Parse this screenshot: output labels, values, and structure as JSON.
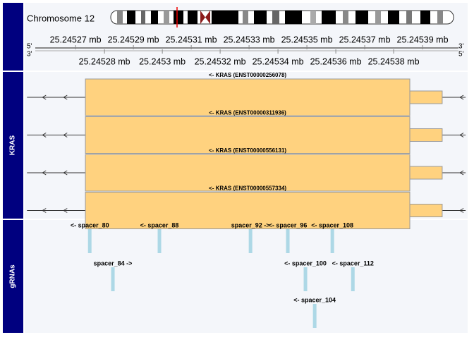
{
  "chart_data": {
    "type": "genome-browser",
    "chromosome_label": "Chromosome 12",
    "xlim": [
      25.2452524,
      25.2454056
    ],
    "xticks": [
      {
        "value": 25.24527,
        "label": "25.24527 mb"
      },
      {
        "value": 25.24528,
        "label": "25.24528 mb"
      },
      {
        "value": 25.24529,
        "label": "25.24529 mb"
      },
      {
        "value": 25.2453,
        "label": "25.2453 mb"
      },
      {
        "value": 25.24531,
        "label": "25.24531 mb"
      },
      {
        "value": 25.24532,
        "label": "25.24532 mb"
      },
      {
        "value": 25.24533,
        "label": "25.24533 mb"
      },
      {
        "value": 25.24534,
        "label": "25.24534 mb"
      },
      {
        "value": 25.24535,
        "label": "25.24535 mb"
      },
      {
        "value": 25.24536,
        "label": "25.24536 mb"
      },
      {
        "value": 25.24537,
        "label": "25.24537 mb"
      },
      {
        "value": 25.24538,
        "label": "25.24538 mb"
      },
      {
        "value": 25.24539,
        "label": "25.24539 mb"
      }
    ],
    "strand_labels": {
      "top_left": "5'",
      "top_right": "3'",
      "bottom_left": "3'",
      "bottom_right": "5'"
    },
    "gene_track": {
      "name": "KRAS",
      "color": "#FFD27F",
      "transcripts": [
        {
          "label": "<- KRAS (ENST00000256078)",
          "start": 25.2452532,
          "end": 25.2454049,
          "cds_start": 25.2452734,
          "cds_end": 25.2453856,
          "utr_end": 25.2453968
        },
        {
          "label": "<- KRAS (ENST00000311936)",
          "start": 25.2452532,
          "end": 25.2454049,
          "cds_start": 25.2452734,
          "cds_end": 25.2453856,
          "utr_end": 25.2453968
        },
        {
          "label": "<- KRAS (ENST00000556131)",
          "start": 25.2452532,
          "end": 25.2454049,
          "cds_start": 25.2452734,
          "cds_end": 25.2453856,
          "utr_end": 25.2453968
        },
        {
          "label": "<- KRAS (ENST00000557334)",
          "start": 25.2452532,
          "end": 25.2454049,
          "cds_start": 25.2452734,
          "cds_end": 25.2453856,
          "utr_end": 25.2453968
        }
      ]
    },
    "grna_track": {
      "name": "gRNAs",
      "color": "#ADD8E6",
      "features": [
        {
          "label": "<- spacer_80",
          "position": 25.2452749
        },
        {
          "label": "<- spacer_88",
          "position": 25.245299
        },
        {
          "label": "spacer_92 ->",
          "position": 25.2453305
        },
        {
          "label": "<- spacer_96",
          "position": 25.2453434
        },
        {
          "label": "<- spacer_108",
          "position": 25.2453588
        },
        {
          "label": "spacer_84 ->",
          "position": 25.2452829
        },
        {
          "label": "<- spacer_100",
          "position": 25.2453495
        },
        {
          "label": "<- spacer_112",
          "position": 25.2453659
        },
        {
          "label": "<- spacer_104",
          "position": 25.2453527
        }
      ]
    }
  }
}
